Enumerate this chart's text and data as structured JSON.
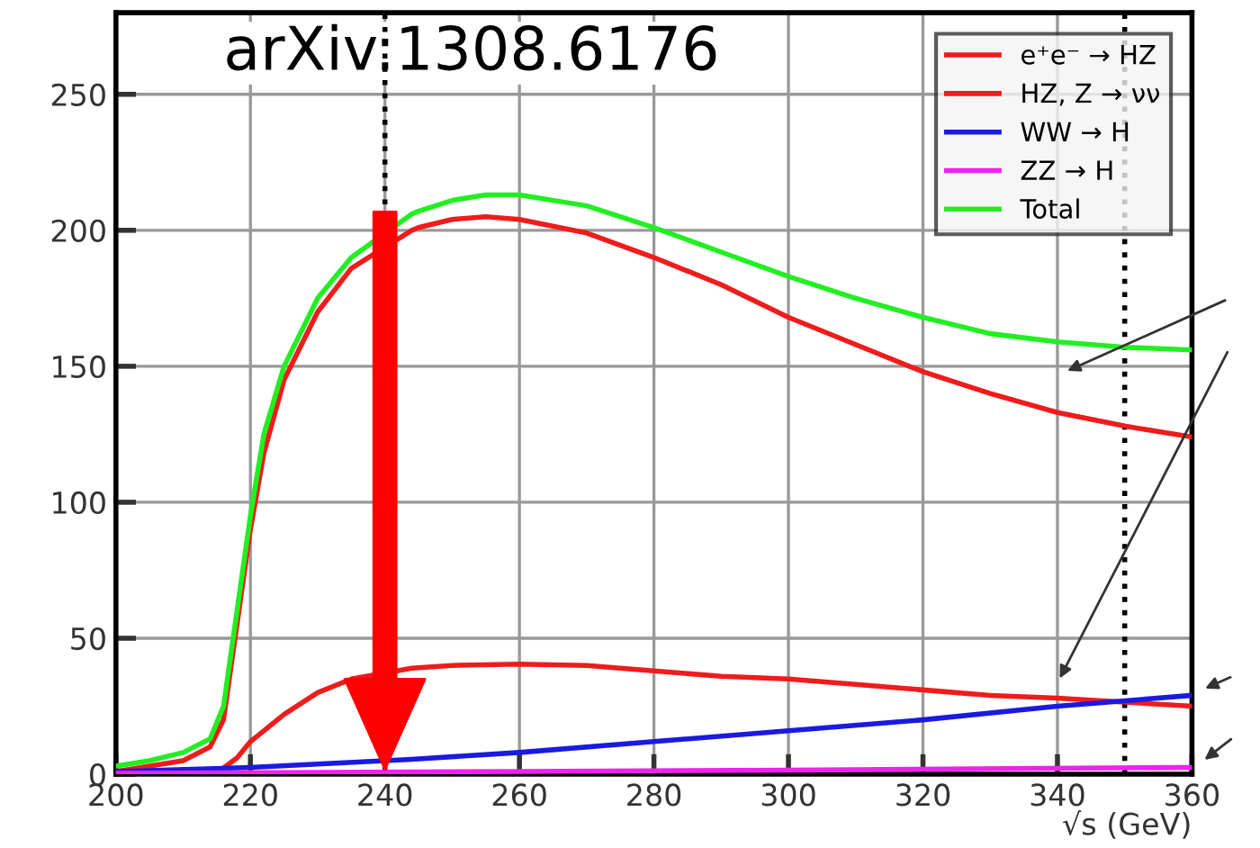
{
  "chart_data": {
    "type": "line",
    "xlabel": "√s (GeV)",
    "xlim": [
      200,
      360
    ],
    "xticks": [
      200,
      220,
      240,
      260,
      280,
      300,
      320,
      340,
      360
    ],
    "ylim": [
      0,
      280
    ],
    "yticks": [
      0,
      50,
      100,
      150,
      200,
      250
    ],
    "grid": true,
    "legend": "top right",
    "line_style": "solid",
    "annotations": [
      "arXiv:1308.6176"
    ],
    "ref_lines": [
      {
        "axis": "x",
        "value": 240,
        "color": "#000000",
        "line_style": "dotted"
      },
      {
        "axis": "x",
        "value": 350,
        "color": "#000000",
        "line_style": "dotted"
      }
    ],
    "series": [
      {
        "name": "e⁺e⁻ → HZ",
        "color": "#ee1c1c",
        "x": [
          200,
          205,
          210,
          214,
          216,
          218,
          220,
          222,
          225,
          230,
          235,
          244,
          245,
          250,
          255,
          260,
          270,
          280,
          290,
          300,
          310,
          320,
          330,
          340,
          350,
          360
        ],
        "values": [
          1,
          3,
          5,
          10,
          20,
          55,
          90,
          118,
          145,
          170,
          186,
          200,
          201,
          204,
          205,
          204,
          199,
          190,
          180,
          168,
          158,
          148,
          140,
          133,
          128,
          124
        ]
      },
      {
        "name": "HZ, Z → νν",
        "color": "#ee1c1c",
        "x": [
          200,
          215,
          218,
          220,
          225,
          230,
          235,
          244,
          250,
          260,
          270,
          280,
          290,
          300,
          310,
          320,
          330,
          340,
          350,
          360
        ],
        "values": [
          0,
          0.5,
          6,
          12,
          22,
          30,
          35,
          39,
          40,
          40.5,
          40,
          38,
          36,
          35,
          33,
          31,
          29,
          28,
          26.5,
          25
        ]
      },
      {
        "name": "WW → H",
        "color": "#1a1ae0",
        "x": [
          200,
          220,
          244,
          260,
          280,
          300,
          320,
          340,
          360
        ],
        "values": [
          1,
          2.5,
          5.5,
          8,
          12,
          16,
          20,
          25,
          29
        ]
      },
      {
        "name": "ZZ → H",
        "color": "#ee22ee",
        "x": [
          200,
          260,
          300,
          360
        ],
        "values": [
          0.3,
          1,
          1.5,
          2.5
        ]
      },
      {
        "name": "Total",
        "color": "#22ee22",
        "x": [
          200,
          205,
          210,
          214,
          216,
          218,
          220,
          222,
          225,
          230,
          235,
          244,
          245,
          250,
          255,
          260,
          270,
          280,
          290,
          300,
          310,
          320,
          330,
          340,
          350,
          360
        ],
        "values": [
          3,
          5,
          8,
          13,
          25,
          60,
          95,
          125,
          150,
          175,
          190,
          206,
          207,
          211,
          213,
          213,
          209,
          201,
          192,
          183,
          175,
          168,
          162,
          159,
          157,
          156
        ]
      }
    ]
  }
}
